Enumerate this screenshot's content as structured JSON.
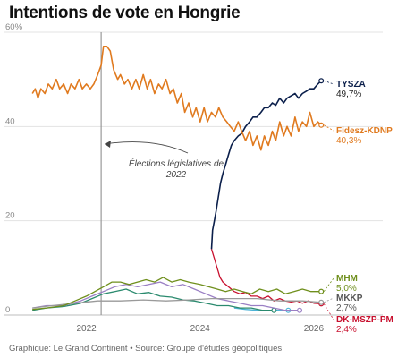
{
  "title": "Intentions de vote en Hongrie",
  "source": "Graphique: Le Grand Continent • Source: Groupe d'études géopolitiques",
  "annotation": [
    "Élections législatives de",
    "2022"
  ],
  "chart_data": {
    "type": "line",
    "title": "Intentions de vote en Hongrie",
    "xlabel": "",
    "ylabel": "",
    "xlim": [
      2021.0,
      2026.3
    ],
    "ylim": [
      0,
      60
    ],
    "y_ticks": [
      0,
      20,
      40,
      60
    ],
    "y_tick_labels": [
      "0",
      "20",
      "40",
      "60%"
    ],
    "x_ticks": [
      2022,
      2024,
      2026
    ],
    "x_tick_labels": [
      "2022",
      "2024",
      "2026"
    ],
    "grid": "horizontal",
    "legend": "direct labels at line ends (right)",
    "event_line": {
      "x": 2022.26,
      "label": "Élections législatives de 2022"
    },
    "series": [
      {
        "name": "Fidesz-KDNP",
        "color": "#e07a1f",
        "end_label": "40,3%",
        "points": [
          [
            2021.05,
            47
          ],
          [
            2021.1,
            48
          ],
          [
            2021.15,
            46
          ],
          [
            2021.2,
            48
          ],
          [
            2021.27,
            47
          ],
          [
            2021.33,
            49
          ],
          [
            2021.4,
            48
          ],
          [
            2021.47,
            50
          ],
          [
            2021.53,
            48
          ],
          [
            2021.6,
            49
          ],
          [
            2021.67,
            47
          ],
          [
            2021.73,
            49
          ],
          [
            2021.8,
            48
          ],
          [
            2021.87,
            50
          ],
          [
            2021.93,
            48
          ],
          [
            2022.0,
            49
          ],
          [
            2022.07,
            48
          ],
          [
            2022.13,
            49
          ],
          [
            2022.2,
            51
          ],
          [
            2022.26,
            53
          ],
          [
            2022.3,
            57
          ],
          [
            2022.36,
            57
          ],
          [
            2022.42,
            56
          ],
          [
            2022.48,
            52
          ],
          [
            2022.55,
            50
          ],
          [
            2022.6,
            51
          ],
          [
            2022.67,
            49
          ],
          [
            2022.73,
            50
          ],
          [
            2022.8,
            48
          ],
          [
            2022.87,
            50
          ],
          [
            2022.93,
            48
          ],
          [
            2023.0,
            51
          ],
          [
            2023.07,
            48
          ],
          [
            2023.13,
            50
          ],
          [
            2023.2,
            47
          ],
          [
            2023.27,
            49
          ],
          [
            2023.33,
            48
          ],
          [
            2023.4,
            50
          ],
          [
            2023.47,
            47
          ],
          [
            2023.53,
            48
          ],
          [
            2023.6,
            45
          ],
          [
            2023.67,
            47
          ],
          [
            2023.73,
            43
          ],
          [
            2023.8,
            45
          ],
          [
            2023.87,
            42
          ],
          [
            2023.93,
            44
          ],
          [
            2024.0,
            41
          ],
          [
            2024.07,
            44
          ],
          [
            2024.13,
            41
          ],
          [
            2024.2,
            43
          ],
          [
            2024.27,
            42
          ],
          [
            2024.33,
            44
          ],
          [
            2024.4,
            42
          ],
          [
            2024.47,
            41
          ],
          [
            2024.53,
            40
          ],
          [
            2024.6,
            39
          ],
          [
            2024.67,
            41
          ],
          [
            2024.73,
            39
          ],
          [
            2024.8,
            37
          ],
          [
            2024.87,
            39
          ],
          [
            2024.93,
            36
          ],
          [
            2025.0,
            38
          ],
          [
            2025.07,
            35
          ],
          [
            2025.13,
            38
          ],
          [
            2025.2,
            36
          ],
          [
            2025.27,
            39
          ],
          [
            2025.33,
            37
          ],
          [
            2025.4,
            41
          ],
          [
            2025.47,
            38
          ],
          [
            2025.53,
            40
          ],
          [
            2025.6,
            38
          ],
          [
            2025.67,
            42
          ],
          [
            2025.73,
            39
          ],
          [
            2025.8,
            41
          ],
          [
            2025.87,
            40
          ],
          [
            2025.93,
            43
          ],
          [
            2026.0,
            40
          ],
          [
            2026.07,
            41
          ],
          [
            2026.13,
            40.3
          ]
        ]
      },
      {
        "name": "TYSZA",
        "color": "#0b1f4b",
        "end_label": "49,7%",
        "points": [
          [
            2024.2,
            14
          ],
          [
            2024.22,
            18
          ],
          [
            2024.25,
            20
          ],
          [
            2024.28,
            22
          ],
          [
            2024.32,
            25
          ],
          [
            2024.36,
            28
          ],
          [
            2024.4,
            30
          ],
          [
            2024.45,
            32
          ],
          [
            2024.5,
            34
          ],
          [
            2024.55,
            36
          ],
          [
            2024.6,
            37
          ],
          [
            2024.67,
            38
          ],
          [
            2024.73,
            38.5
          ],
          [
            2024.8,
            40
          ],
          [
            2024.87,
            41
          ],
          [
            2024.93,
            42
          ],
          [
            2025.0,
            42
          ],
          [
            2025.07,
            43
          ],
          [
            2025.13,
            44
          ],
          [
            2025.2,
            44
          ],
          [
            2025.27,
            45
          ],
          [
            2025.33,
            44.5
          ],
          [
            2025.4,
            46
          ],
          [
            2025.47,
            45
          ],
          [
            2025.53,
            46
          ],
          [
            2025.6,
            46.5
          ],
          [
            2025.67,
            47
          ],
          [
            2025.73,
            46
          ],
          [
            2025.8,
            47
          ],
          [
            2025.87,
            47.5
          ],
          [
            2025.93,
            48
          ],
          [
            2026.0,
            48
          ],
          [
            2026.07,
            49
          ],
          [
            2026.13,
            49.7
          ]
        ]
      },
      {
        "name": "MHM",
        "color": "#6f8f1c",
        "end_label": "5,0%",
        "points": [
          [
            2021.05,
            1.2
          ],
          [
            2021.3,
            1.5
          ],
          [
            2021.6,
            2
          ],
          [
            2021.8,
            3
          ],
          [
            2022.0,
            4
          ],
          [
            2022.15,
            5
          ],
          [
            2022.3,
            6
          ],
          [
            2022.45,
            7
          ],
          [
            2022.6,
            7
          ],
          [
            2022.75,
            6.5
          ],
          [
            2022.9,
            7
          ],
          [
            2023.05,
            7.5
          ],
          [
            2023.2,
            7
          ],
          [
            2023.35,
            8
          ],
          [
            2023.5,
            7
          ],
          [
            2023.65,
            7.5
          ],
          [
            2023.8,
            7
          ],
          [
            2024.0,
            6.5
          ],
          [
            2024.15,
            6
          ],
          [
            2024.3,
            5.5
          ],
          [
            2024.45,
            5
          ],
          [
            2024.6,
            5.5
          ],
          [
            2024.75,
            5
          ],
          [
            2024.9,
            4.5
          ],
          [
            2025.05,
            5.5
          ],
          [
            2025.2,
            5
          ],
          [
            2025.35,
            5.5
          ],
          [
            2025.5,
            4.5
          ],
          [
            2025.65,
            5
          ],
          [
            2025.8,
            5.5
          ],
          [
            2025.95,
            5
          ],
          [
            2026.13,
            5.0
          ]
        ]
      },
      {
        "name": "MKKP",
        "color": "#9a9a9a",
        "end_label": "2,7%",
        "points": [
          [
            2021.05,
            1.5
          ],
          [
            2021.4,
            2
          ],
          [
            2021.8,
            2.5
          ],
          [
            2022.2,
            3
          ],
          [
            2022.6,
            3
          ],
          [
            2023.0,
            3.2
          ],
          [
            2023.4,
            3
          ],
          [
            2023.8,
            3.2
          ],
          [
            2024.2,
            3.5
          ],
          [
            2024.6,
            3.5
          ],
          [
            2025.0,
            3.5
          ],
          [
            2025.4,
            3
          ],
          [
            2025.8,
            3
          ],
          [
            2026.13,
            2.7
          ]
        ]
      },
      {
        "name": "DK-MSZP-PM",
        "color": "#c8102e",
        "end_label": "2,4%",
        "points": [
          [
            2024.2,
            14
          ],
          [
            2024.25,
            12
          ],
          [
            2024.3,
            10
          ],
          [
            2024.35,
            8
          ],
          [
            2024.4,
            7
          ],
          [
            2024.5,
            6
          ],
          [
            2024.6,
            5
          ],
          [
            2024.7,
            4.5
          ],
          [
            2024.8,
            4.8
          ],
          [
            2024.9,
            4
          ],
          [
            2025.0,
            4
          ],
          [
            2025.1,
            3.5
          ],
          [
            2025.2,
            4
          ],
          [
            2025.3,
            3
          ],
          [
            2025.4,
            3.5
          ],
          [
            2025.5,
            3
          ],
          [
            2025.6,
            2.8
          ],
          [
            2025.7,
            3
          ],
          [
            2025.8,
            2.5
          ],
          [
            2025.9,
            3
          ],
          [
            2026.0,
            2.5
          ],
          [
            2026.13,
            2.4
          ]
        ]
      },
      {
        "name": "",
        "color": "#9a7fc4",
        "points": [
          [
            2021.05,
            1.5
          ],
          [
            2021.3,
            2
          ],
          [
            2021.6,
            2
          ],
          [
            2021.9,
            3
          ],
          [
            2022.1,
            4
          ],
          [
            2022.3,
            5
          ],
          [
            2022.5,
            6
          ],
          [
            2022.7,
            6.5
          ],
          [
            2022.9,
            6
          ],
          [
            2023.1,
            6.5
          ],
          [
            2023.3,
            7
          ],
          [
            2023.5,
            6
          ],
          [
            2023.7,
            6.5
          ],
          [
            2023.9,
            5.5
          ],
          [
            2024.1,
            4.5
          ],
          [
            2024.3,
            3.5
          ],
          [
            2024.5,
            3
          ],
          [
            2024.7,
            2.5
          ],
          [
            2024.9,
            2
          ],
          [
            2025.1,
            2
          ],
          [
            2025.3,
            1.5
          ],
          [
            2025.5,
            1
          ],
          [
            2025.75,
            1
          ]
        ]
      },
      {
        "name": "",
        "color": "#2a8a6e",
        "points": [
          [
            2021.05,
            1
          ],
          [
            2021.3,
            1.5
          ],
          [
            2021.6,
            1.8
          ],
          [
            2021.9,
            2.5
          ],
          [
            2022.1,
            3.5
          ],
          [
            2022.3,
            4.5
          ],
          [
            2022.5,
            5
          ],
          [
            2022.7,
            5.5
          ],
          [
            2022.9,
            4.5
          ],
          [
            2023.1,
            4.8
          ],
          [
            2023.3,
            4
          ],
          [
            2023.5,
            3.8
          ],
          [
            2023.7,
            3.2
          ],
          [
            2023.9,
            3
          ],
          [
            2024.1,
            2.5
          ],
          [
            2024.3,
            2
          ],
          [
            2024.5,
            2
          ],
          [
            2024.7,
            1.5
          ],
          [
            2024.9,
            1.5
          ],
          [
            2025.1,
            1
          ],
          [
            2025.3,
            1
          ]
        ]
      },
      {
        "name": "",
        "color": "#4db3d6",
        "points": [
          [
            2024.6,
            1.5
          ],
          [
            2024.8,
            1.2
          ],
          [
            2025.0,
            1
          ],
          [
            2025.2,
            1
          ],
          [
            2025.4,
            1
          ],
          [
            2025.55,
            1
          ]
        ]
      }
    ]
  }
}
